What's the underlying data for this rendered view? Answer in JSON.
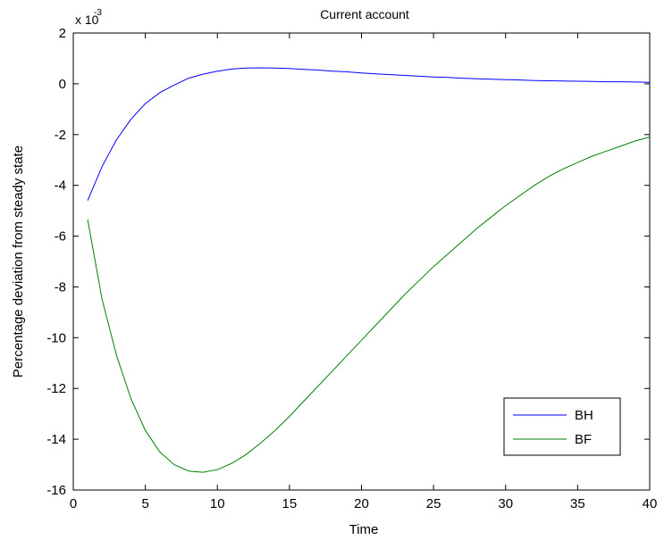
{
  "chart_data": {
    "type": "line",
    "title": "Current account",
    "xlabel": "Time",
    "ylabel": "Percentage deviation from steady state",
    "y_scale_base": "x 10",
    "y_scale_exponent": "-3",
    "xlim": [
      0,
      40
    ],
    "ylim": [
      -16,
      2
    ],
    "x_ticks": [
      0,
      5,
      10,
      15,
      20,
      25,
      30,
      35,
      40
    ],
    "y_ticks": [
      -16,
      -14,
      -12,
      -10,
      -8,
      -6,
      -4,
      -2,
      0,
      2
    ],
    "grid": false,
    "legend_position": "bottom-right",
    "series": [
      {
        "name": "BH",
        "color": "#0000ff",
        "x": [
          1,
          2,
          3,
          4,
          5,
          6,
          7,
          8,
          9,
          10,
          11,
          12,
          13,
          14,
          15,
          16,
          17,
          18,
          19,
          20,
          21,
          22,
          23,
          24,
          25,
          26,
          27,
          28,
          29,
          30,
          31,
          32,
          33,
          34,
          35,
          36,
          37,
          38,
          39,
          40
        ],
        "y": [
          -4.6,
          -3.25,
          -2.2,
          -1.4,
          -0.78,
          -0.35,
          -0.05,
          0.22,
          0.38,
          0.5,
          0.58,
          0.62,
          0.63,
          0.62,
          0.6,
          0.57,
          0.54,
          0.5,
          0.47,
          0.43,
          0.39,
          0.36,
          0.33,
          0.3,
          0.27,
          0.25,
          0.22,
          0.2,
          0.18,
          0.16,
          0.15,
          0.13,
          0.12,
          0.11,
          0.1,
          0.09,
          0.08,
          0.08,
          0.07,
          0.06
        ]
      },
      {
        "name": "BF",
        "color": "#008000",
        "x": [
          1,
          2,
          3,
          4,
          5,
          6,
          7,
          8,
          9,
          10,
          11,
          12,
          13,
          14,
          15,
          16,
          17,
          18,
          19,
          20,
          21,
          22,
          23,
          24,
          25,
          26,
          27,
          28,
          29,
          30,
          31,
          32,
          33,
          34,
          35,
          36,
          37,
          38,
          39,
          40
        ],
        "y": [
          -5.35,
          -8.5,
          -10.7,
          -12.4,
          -13.65,
          -14.5,
          -15.0,
          -15.25,
          -15.3,
          -15.2,
          -14.95,
          -14.6,
          -14.15,
          -13.65,
          -13.1,
          -12.5,
          -11.9,
          -11.3,
          -10.7,
          -10.1,
          -9.5,
          -8.9,
          -8.3,
          -7.75,
          -7.2,
          -6.7,
          -6.2,
          -5.7,
          -5.25,
          -4.8,
          -4.4,
          -4.0,
          -3.65,
          -3.35,
          -3.1,
          -2.85,
          -2.65,
          -2.45,
          -2.25,
          -2.1
        ]
      }
    ]
  }
}
